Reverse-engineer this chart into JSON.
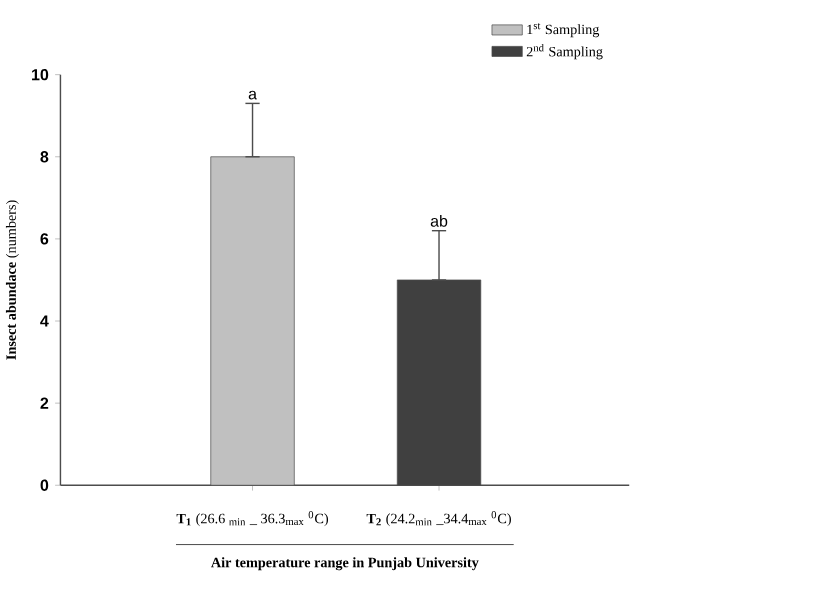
{
  "chart_data": {
    "type": "bar",
    "categories": [
      "**T$_{1}$** (26.6 $_{min}$ _ 36.3$_{max}$ $^{0}$C)",
      "**T$_{2}$** (24.2$_{min}$ _34.4$_{max}$ $^{0}$C)"
    ],
    "series": [
      {
        "name": "1$^{st}$ Sampling",
        "color": "#c0c0c0",
        "values": [
          8,
          null
        ],
        "errors": [
          [
            8,
            9.3
          ],
          null
        ]
      },
      {
        "name": "2$^{nd}$ Sampling",
        "color": "#404040",
        "values": [
          null,
          5
        ],
        "errors": [
          null,
          [
            5,
            6.2
          ]
        ]
      }
    ],
    "xlabel": "Air temperature range in Punjab University",
    "ylabel": "**Insect abundace** (numbers)",
    "ylim": [
      0,
      10
    ],
    "yticks": [
      0,
      2,
      4,
      6,
      8,
      10
    ],
    "annotations": [
      "a",
      "ab"
    ],
    "legend": "top right",
    "grid": false
  }
}
